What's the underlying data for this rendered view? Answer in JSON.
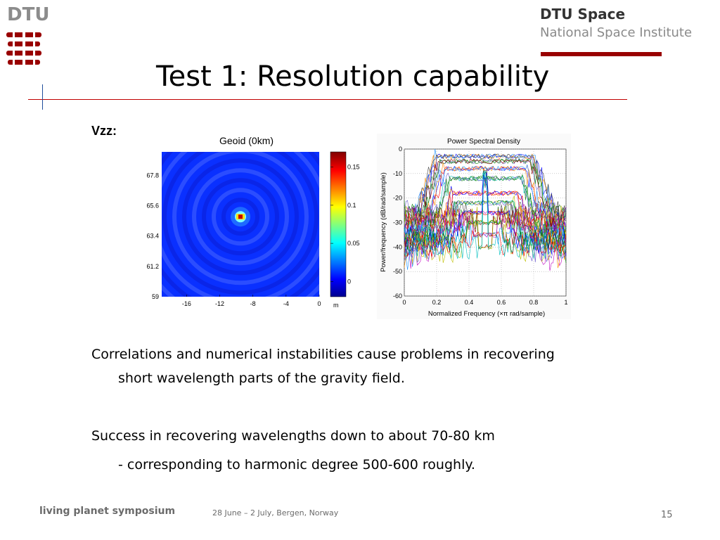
{
  "header": {
    "logo_text": "DTU",
    "brand_title": "DTU Space",
    "brand_subtitle": "National Space Institute",
    "colors": {
      "accent": "#990000",
      "logo_red": "#990000",
      "logo_gray": "#8c8c8c"
    }
  },
  "slide": {
    "title": "Test 1: Resolution capability",
    "label": "Vzz:",
    "para1_line1": "Correlations and numerical instabilities cause problems in recovering",
    "para1_line2": "short wavelength parts of the gravity field.",
    "para2": "Success in recovering wavelengths down to about 70-80 km",
    "para3": "- corresponding to harmonic degree 500-600 roughly."
  },
  "footer": {
    "event": "living planet symposium",
    "date": "28 June – 2 July, Bergen, Norway",
    "page": "15"
  },
  "chart_data": [
    {
      "type": "heatmap",
      "title": "Geoid (0km)",
      "x_ticks": [
        "-16",
        "-12",
        "-8",
        "-4",
        "0"
      ],
      "y_ticks": [
        "67.8",
        "65.6",
        "63.4",
        "61.2",
        "59"
      ],
      "xlim": [
        -19,
        0
      ],
      "ylim": [
        59,
        69.5
      ],
      "colorbar": {
        "ticks": [
          "0.15",
          "0.1",
          "0.05",
          "0"
        ],
        "unit": "m",
        "range": [
          -0.02,
          0.17
        ]
      },
      "peak": {
        "x": -9.5,
        "y": 64.8,
        "value": 0.17
      },
      "background_value": 0.0,
      "colormap": "jet"
    },
    {
      "type": "line",
      "title": "Power Spectral Density",
      "xlabel": "Normalized Frequency  (×π rad/sample)",
      "ylabel": "Power/frequency (dB/rad/sample)",
      "x_ticks": [
        "0",
        "0.2",
        "0.4",
        "0.6",
        "0.8",
        "1"
      ],
      "y_ticks": [
        "0",
        "-10",
        "-20",
        "-30",
        "-40",
        "-50",
        "-60"
      ],
      "xlim": [
        0,
        1
      ],
      "ylim": [
        -60,
        0
      ],
      "grid": true,
      "series_count": 40,
      "series_description_values": {
        "passband_levels_db": [
          -3,
          -5,
          -8,
          -12,
          -18,
          -22,
          -26,
          -30,
          -35,
          -40
        ],
        "stopband_level_db": [
          -45,
          -25
        ],
        "center_peak": {
          "x": 0.5,
          "y": -8
        },
        "passband_edges": [
          [
            0.2,
            0.8
          ],
          [
            0.22,
            0.78
          ],
          [
            0.25,
            0.75
          ],
          [
            0.28,
            0.72
          ],
          [
            0.3,
            0.7
          ],
          [
            0.33,
            0.67
          ],
          [
            0.36,
            0.64
          ],
          [
            0.4,
            0.6
          ],
          [
            0.43,
            0.57
          ],
          [
            0.46,
            0.54
          ]
        ]
      }
    }
  ]
}
